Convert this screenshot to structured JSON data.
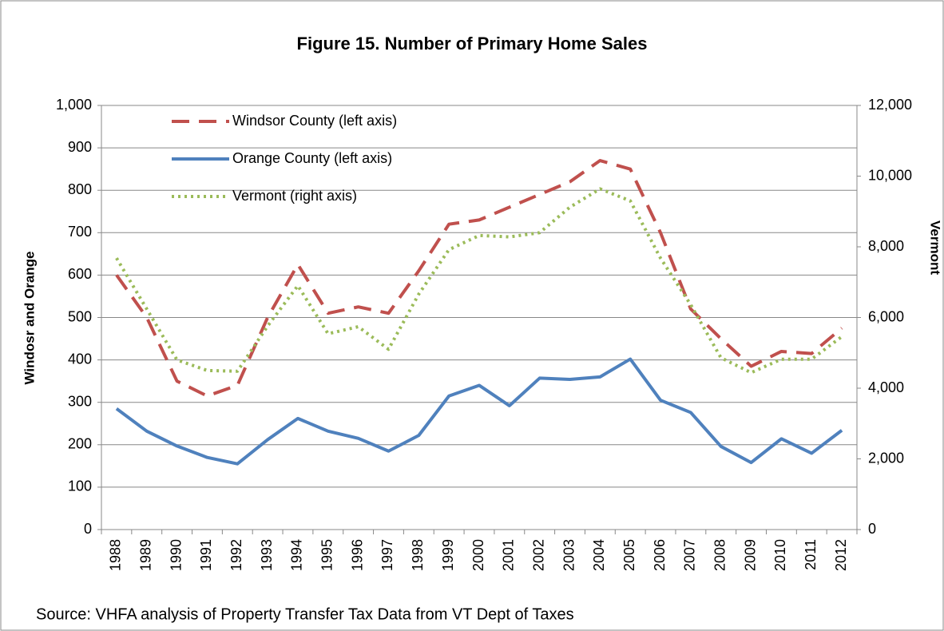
{
  "chart_data": {
    "type": "line",
    "title": "Figure 15. Number of Primary Home Sales",
    "y_label": "Windosr and Orange",
    "y2_label": "Vermont",
    "source": "Source: VHFA analysis of Property Transfer Tax Data from VT Dept of Taxes",
    "categories": [
      "1988",
      "1989",
      "1990",
      "1991",
      "1992",
      "1993",
      "1994",
      "1995",
      "1996",
      "1997",
      "1998",
      "1999",
      "2000",
      "2001",
      "2002",
      "2003",
      "2004",
      "2005",
      "2006",
      "2007",
      "2008",
      "2009",
      "2010",
      "2011",
      "2012"
    ],
    "series": [
      {
        "name": "Windsor County (left axis)",
        "color": "#c0504d",
        "dash": "dashed",
        "axis": "y",
        "values": [
          600,
          500,
          350,
          315,
          340,
          500,
          625,
          510,
          525,
          510,
          610,
          720,
          730,
          760,
          790,
          820,
          870,
          850,
          700,
          520,
          450,
          385,
          420,
          415,
          475
        ]
      },
      {
        "name": "Orange County (left axis)",
        "color": "#4f81bd",
        "dash": "solid",
        "axis": "y",
        "values": [
          285,
          232,
          197,
          170,
          155,
          212,
          262,
          232,
          215,
          185,
          222,
          315,
          340,
          292,
          357,
          354,
          360,
          402,
          305,
          276,
          196,
          158,
          214,
          180,
          234
        ]
      },
      {
        "name": "Vermont (right axis)",
        "color": "#9bbb59",
        "dash": "dotted",
        "axis": "y2",
        "values": [
          7680,
          6240,
          4800,
          4500,
          4480,
          5760,
          6900,
          5540,
          5740,
          5100,
          6660,
          7920,
          8320,
          8280,
          8400,
          9120,
          9640,
          9300,
          7680,
          6360,
          4860,
          4440,
          4820,
          4820,
          5460
        ]
      }
    ],
    "ylim": [
      0,
      1000
    ],
    "yticks": [
      0,
      100,
      200,
      300,
      400,
      500,
      600,
      700,
      800,
      900,
      {
        "value": 1000,
        "label": "1,000"
      }
    ],
    "y2lim": [
      0,
      12000
    ],
    "y2ticks": [
      0,
      {
        "value": 2000,
        "label": "2,000"
      },
      {
        "value": 4000,
        "label": "4,000"
      },
      {
        "value": 6000,
        "label": "6,000"
      },
      {
        "value": 8000,
        "label": "8,000"
      },
      {
        "value": 10000,
        "label": "10,000"
      },
      {
        "value": 12000,
        "label": "12,000"
      }
    ],
    "grid": true,
    "legend": "top-left"
  }
}
